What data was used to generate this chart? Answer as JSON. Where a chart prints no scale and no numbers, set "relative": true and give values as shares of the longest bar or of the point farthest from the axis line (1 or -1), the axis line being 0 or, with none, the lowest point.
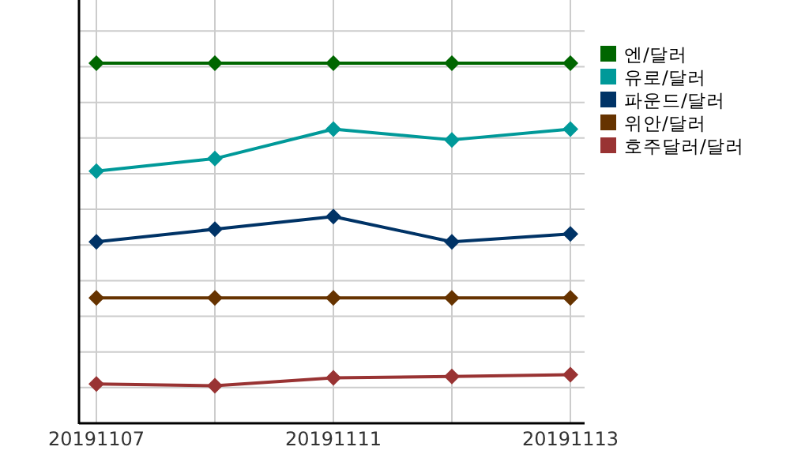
{
  "chart_data": {
    "type": "line",
    "relative": true,
    "categories": [
      "20191107",
      null,
      "20191111",
      null,
      "20191113"
    ],
    "series": [
      {
        "name": "엔/달러",
        "color": "#006600",
        "values": [
          1,
          1,
          1,
          1,
          1
        ]
      },
      {
        "name": "유로/달러",
        "color": "#009999",
        "values": [
          0.7,
          0.735,
          0.817,
          0.787,
          0.817
        ]
      },
      {
        "name": "파운드/달러",
        "color": "#003366",
        "values": [
          0.504,
          0.539,
          0.574,
          0.504,
          0.526
        ]
      },
      {
        "name": "위안/달러",
        "color": "#663300",
        "values": [
          0.348,
          0.348,
          0.348,
          0.348,
          0.348
        ]
      },
      {
        "name": "호주달러/달러",
        "color": "#993333",
        "values": [
          0.109,
          0.104,
          0.126,
          0.13,
          0.135
        ]
      }
    ],
    "grid": true,
    "legend": "right",
    "marker": "diamond",
    "line_style": "solid"
  }
}
